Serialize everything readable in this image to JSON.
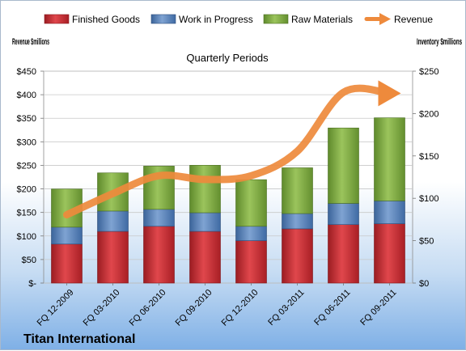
{
  "chart_data": {
    "type": "bar",
    "stacked": true,
    "title": "Titan International",
    "subtitle": "Quarterly Periods",
    "ylabel_left": "Revenue $millions",
    "ylabel_right": "Inventory $millions",
    "categories": [
      "FQ 12-2009",
      "FQ 03-2010",
      "FQ 06-2010",
      "FQ 09-2010",
      "FQ 12-2010",
      "FQ 03-2011",
      "FQ 06-2011",
      "FQ 09-2011"
    ],
    "series": [
      {
        "name": "Finished Goods",
        "axis": "right",
        "color": "#c0272d",
        "values": [
          46,
          61,
          67,
          61,
          50,
          64,
          69,
          70
        ]
      },
      {
        "name": "Work in Progress",
        "axis": "right",
        "color": "#4f81bd",
        "values": [
          20,
          24,
          20,
          22,
          17,
          18,
          25,
          27
        ]
      },
      {
        "name": "Raw Materials",
        "axis": "right",
        "color": "#77a73d",
        "values": [
          45,
          45,
          51,
          56,
          55,
          54,
          89,
          98
        ]
      },
      {
        "name": "Revenue",
        "axis": "left",
        "type": "line",
        "color": "#ee8a3c",
        "values": [
          145,
          190,
          228,
          220,
          228,
          280,
          405,
          403
        ]
      }
    ],
    "y_left": {
      "min": 0,
      "max": 450,
      "step": 50,
      "ticks": [
        "$-",
        "$50",
        "$100",
        "$150",
        "$200",
        "$250",
        "$300",
        "$350",
        "$400",
        "$450"
      ]
    },
    "y_right": {
      "min": 0,
      "max": 250,
      "step": 50,
      "ticks": [
        "$0",
        "$50",
        "$100",
        "$150",
        "$200",
        "$250"
      ]
    },
    "grid": true,
    "legend": "top"
  }
}
